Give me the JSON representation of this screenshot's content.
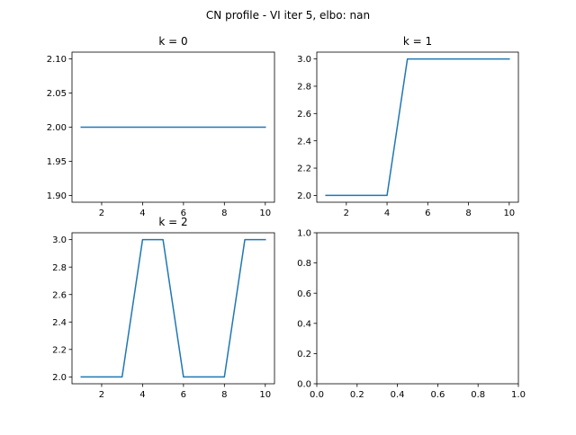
{
  "figure": {
    "suptitle": "CN profile - VI iter 5, elbo: nan",
    "line_color": "#1f77b4"
  },
  "chart_data": [
    {
      "type": "line",
      "title": "k = 0",
      "x": [
        1,
        2,
        3,
        4,
        5,
        6,
        7,
        8,
        9,
        10
      ],
      "series": [
        {
          "values": [
            2,
            2,
            2,
            2,
            2,
            2,
            2,
            2,
            2,
            2
          ]
        }
      ],
      "xlim": [
        0.55,
        10.45
      ],
      "ylim": [
        1.89,
        2.11
      ],
      "xticks": [
        2,
        4,
        6,
        8,
        10
      ],
      "xtick_labels": [
        "2",
        "4",
        "6",
        "8",
        "10"
      ],
      "yticks": [
        1.9,
        1.95,
        2.0,
        2.05,
        2.1
      ],
      "ytick_labels": [
        "1.90",
        "1.95",
        "2.00",
        "2.05",
        "2.10"
      ],
      "grid": false
    },
    {
      "type": "line",
      "title": "k = 1",
      "x": [
        1,
        2,
        3,
        4,
        5,
        6,
        7,
        8,
        9,
        10
      ],
      "series": [
        {
          "values": [
            2,
            2,
            2,
            2,
            3,
            3,
            3,
            3,
            3,
            3
          ]
        }
      ],
      "xlim": [
        0.55,
        10.45
      ],
      "ylim": [
        1.95,
        3.05
      ],
      "xticks": [
        2,
        4,
        6,
        8,
        10
      ],
      "xtick_labels": [
        "2",
        "4",
        "6",
        "8",
        "10"
      ],
      "yticks": [
        2.0,
        2.2,
        2.4,
        2.6,
        2.8,
        3.0
      ],
      "ytick_labels": [
        "2.0",
        "2.2",
        "2.4",
        "2.6",
        "2.8",
        "3.0"
      ],
      "grid": false
    },
    {
      "type": "line",
      "title": "k = 2",
      "x": [
        1,
        2,
        3,
        4,
        5,
        6,
        7,
        8,
        9,
        10
      ],
      "series": [
        {
          "values": [
            2,
            2,
            2,
            3,
            3,
            2,
            2,
            2,
            3,
            3
          ]
        }
      ],
      "xlim": [
        0.55,
        10.45
      ],
      "ylim": [
        1.95,
        3.05
      ],
      "xticks": [
        2,
        4,
        6,
        8,
        10
      ],
      "xtick_labels": [
        "2",
        "4",
        "6",
        "8",
        "10"
      ],
      "yticks": [
        2.0,
        2.2,
        2.4,
        2.6,
        2.8,
        3.0
      ],
      "ytick_labels": [
        "2.0",
        "2.2",
        "2.4",
        "2.6",
        "2.8",
        "3.0"
      ],
      "grid": false
    },
    {
      "type": "line",
      "title": "",
      "x": [],
      "series": [],
      "xlim": [
        0,
        1
      ],
      "ylim": [
        0,
        1
      ],
      "xticks": [
        0.0,
        0.2,
        0.4,
        0.6,
        0.8,
        1.0
      ],
      "xtick_labels": [
        "0.0",
        "0.2",
        "0.4",
        "0.6",
        "0.8",
        "1.0"
      ],
      "yticks": [
        0.0,
        0.2,
        0.4,
        0.6,
        0.8,
        1.0
      ],
      "ytick_labels": [
        "0.0",
        "0.2",
        "0.4",
        "0.6",
        "0.8",
        "1.0"
      ],
      "grid": false
    }
  ]
}
